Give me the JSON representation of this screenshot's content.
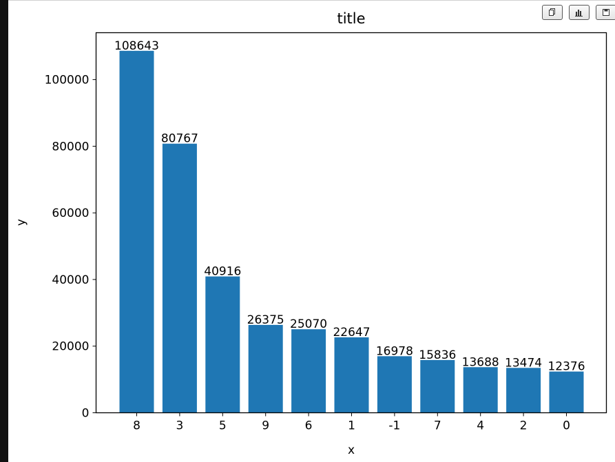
{
  "toolbar": {
    "icons": [
      "copy-icon",
      "bar-chart-icon",
      "save-icon"
    ]
  },
  "chart_data": {
    "type": "bar",
    "title": "title",
    "xlabel": "x",
    "ylabel": "y",
    "categories": [
      "8",
      "3",
      "5",
      "9",
      "6",
      "1",
      "-1",
      "7",
      "4",
      "2",
      "0"
    ],
    "values": [
      108643,
      80767,
      40916,
      26375,
      25070,
      22647,
      16978,
      15836,
      13688,
      13474,
      12376
    ],
    "data_labels": [
      "108643",
      "80767",
      "40916",
      "26375",
      "25070",
      "22647",
      "16978",
      "15836",
      "13688",
      "13474",
      "12376"
    ],
    "yticks": [
      0,
      20000,
      40000,
      60000,
      80000,
      100000
    ],
    "ytick_labels": [
      "0",
      "20000",
      "40000",
      "60000",
      "80000",
      "100000"
    ],
    "ylim": [
      0,
      114075
    ],
    "bar_color": "#1f77b4",
    "grid": false,
    "legend": "none"
  }
}
